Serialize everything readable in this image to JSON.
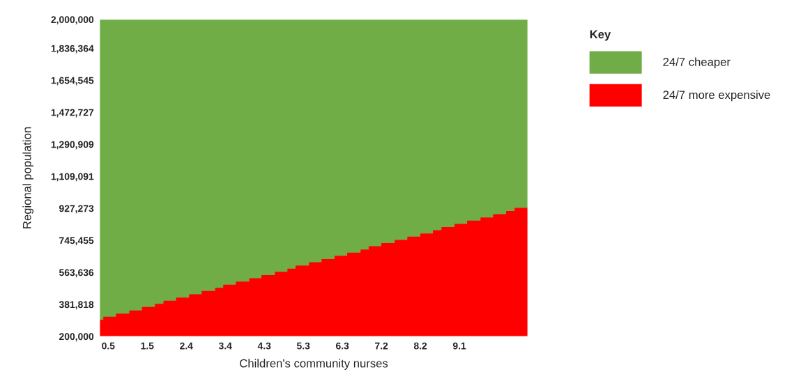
{
  "chart_data": {
    "type": "area",
    "stacked": true,
    "xlabel": "Children's community nurses",
    "ylabel": "Regional population",
    "legend_title": "Key",
    "legend": "right",
    "x": [
      0.29,
      0.39,
      0.39,
      0.7,
      0.7,
      1.03,
      1.03,
      1.34,
      1.34,
      1.66,
      1.66,
      1.87,
      1.87,
      2.18,
      2.18,
      2.5,
      2.5,
      2.81,
      2.81,
      3.14,
      3.14,
      3.34,
      3.34,
      3.65,
      3.65,
      3.98,
      3.98,
      4.28,
      4.28,
      4.61,
      4.61,
      4.92,
      4.92,
      5.12,
      5.12,
      5.45,
      5.45,
      5.76,
      5.76,
      6.08,
      6.08,
      6.39,
      6.39,
      6.72,
      6.72,
      6.92,
      6.92,
      7.23,
      7.23,
      7.56,
      7.56,
      7.87,
      7.87,
      8.19,
      8.19,
      8.5,
      8.5,
      8.71,
      8.71,
      9.03,
      9.03,
      9.34,
      9.34,
      9.67,
      9.67,
      9.98,
      9.98,
      10.3,
      10.3,
      10.51,
      10.51,
      10.82
    ],
    "series": [
      {
        "name": "24/7 more expensive",
        "color": "#ff0000",
        "values": [
          291000,
          291000,
          309000,
          309000,
          327000,
          327000,
          345000,
          345000,
          364000,
          364000,
          382000,
          382000,
          400000,
          400000,
          418000,
          418000,
          436000,
          436000,
          455000,
          455000,
          473000,
          473000,
          491000,
          491000,
          509000,
          509000,
          527000,
          527000,
          545000,
          545000,
          564000,
          564000,
          582000,
          582000,
          600000,
          600000,
          618000,
          618000,
          636000,
          636000,
          655000,
          655000,
          673000,
          673000,
          691000,
          691000,
          709000,
          709000,
          727000,
          727000,
          745000,
          745000,
          764000,
          764000,
          782000,
          782000,
          800000,
          800000,
          818000,
          818000,
          836000,
          836000,
          855000,
          855000,
          873000,
          873000,
          891000,
          891000,
          909000,
          909000,
          927000,
          927000
        ]
      },
      {
        "name": "24/7 cheaper",
        "color": "#70ad47",
        "values": [
          1709000,
          1709000,
          1691000,
          1691000,
          1673000,
          1673000,
          1655000,
          1655000,
          1636000,
          1636000,
          1618000,
          1618000,
          1600000,
          1600000,
          1582000,
          1582000,
          1564000,
          1564000,
          1545000,
          1545000,
          1527000,
          1527000,
          1509000,
          1509000,
          1491000,
          1491000,
          1473000,
          1473000,
          1455000,
          1455000,
          1436000,
          1436000,
          1418000,
          1418000,
          1400000,
          1400000,
          1382000,
          1382000,
          1364000,
          1364000,
          1345000,
          1345000,
          1327000,
          1327000,
          1309000,
          1309000,
          1291000,
          1291000,
          1273000,
          1273000,
          1255000,
          1255000,
          1236000,
          1236000,
          1218000,
          1218000,
          1200000,
          1200000,
          1182000,
          1182000,
          1164000,
          1164000,
          1145000,
          1145000,
          1127000,
          1127000,
          1109000,
          1109000,
          1091000,
          1091000,
          1073000,
          1073000
        ]
      }
    ],
    "xlim": [
      0.29,
      10.82
    ],
    "xticks": [
      {
        "value": 0.5,
        "label": "0.5"
      },
      {
        "value": 1.46,
        "label": "1.5"
      },
      {
        "value": 2.42,
        "label": "2.4"
      },
      {
        "value": 3.38,
        "label": "3.4"
      },
      {
        "value": 4.34,
        "label": "4.3"
      },
      {
        "value": 5.3,
        "label": "5.3"
      },
      {
        "value": 6.26,
        "label": "6.3"
      },
      {
        "value": 7.22,
        "label": "7.2"
      },
      {
        "value": 8.18,
        "label": "8.2"
      },
      {
        "value": 9.14,
        "label": "9.1"
      }
    ],
    "ylim": [
      200000,
      2000000
    ],
    "yticks": [
      {
        "value": 200000,
        "label": "200,000"
      },
      {
        "value": 381818,
        "label": "381,818"
      },
      {
        "value": 563636,
        "label": "563,636"
      },
      {
        "value": 745455,
        "label": "745,455"
      },
      {
        "value": 927273,
        "label": "927,273"
      },
      {
        "value": 1109091,
        "label": "1,109,091"
      },
      {
        "value": 1290909,
        "label": "1,290,909"
      },
      {
        "value": 1472727,
        "label": "1,472,727"
      },
      {
        "value": 1654545,
        "label": "1,654,545"
      },
      {
        "value": 1836364,
        "label": "1,836,364"
      },
      {
        "value": 2000000,
        "label": "2,000,000"
      }
    ]
  }
}
